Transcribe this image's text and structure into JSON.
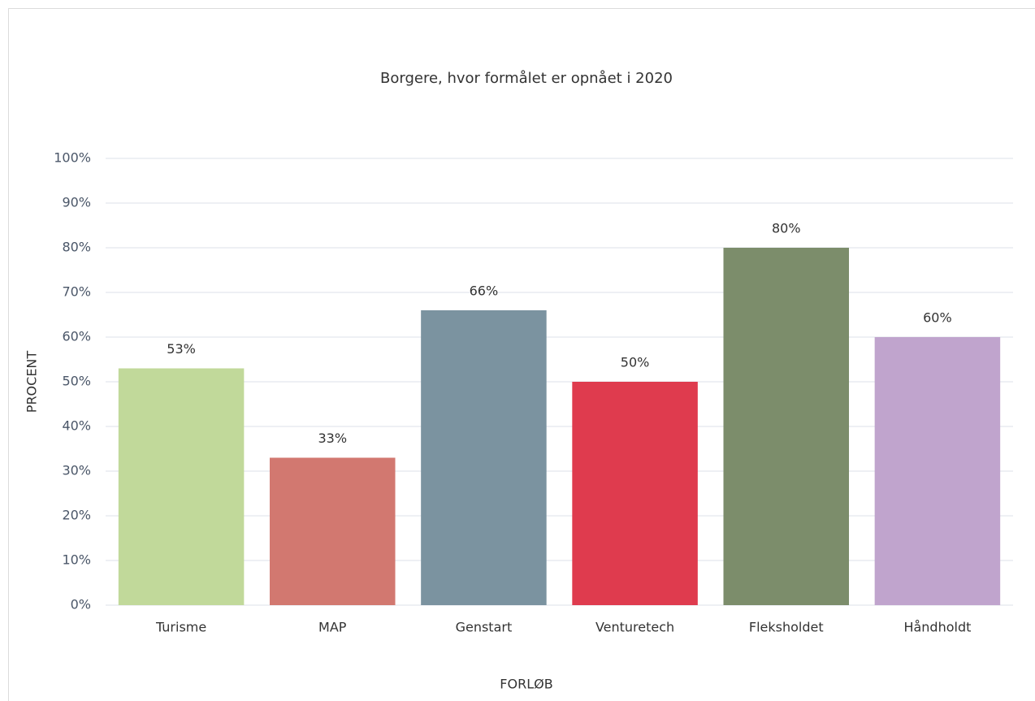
{
  "chart_data": {
    "type": "bar",
    "title": "Borgere, hvor formålet er opnået i 2020",
    "x_label": "FORLØB",
    "y_label": "PROCENT",
    "categories": [
      "Turisme",
      "MAP",
      "Genstart",
      "Venturetech",
      "Fleksholdet",
      "Håndholdt"
    ],
    "values": [
      53,
      33,
      66,
      50,
      80,
      60
    ],
    "value_labels": [
      "53%",
      "33%",
      "66%",
      "50%",
      "80%",
      "60%"
    ],
    "colors": [
      "#c1d99a",
      "#d27870",
      "#7b93a0",
      "#df3b4e",
      "#7c8d6b",
      "#c0a4cd"
    ],
    "ylim": [
      0,
      100
    ],
    "yticks": [
      {
        "value": 0,
        "label": "0%"
      },
      {
        "value": 10,
        "label": "10%"
      },
      {
        "value": 20,
        "label": "20%"
      },
      {
        "value": 30,
        "label": "30%"
      },
      {
        "value": 40,
        "label": "40%"
      },
      {
        "value": 50,
        "label": "50%"
      },
      {
        "value": 60,
        "label": "60%"
      },
      {
        "value": 70,
        "label": "70%"
      },
      {
        "value": 80,
        "label": "80%"
      },
      {
        "value": 90,
        "label": "90%"
      },
      {
        "value": 100,
        "label": "100%"
      }
    ],
    "grid": true
  }
}
